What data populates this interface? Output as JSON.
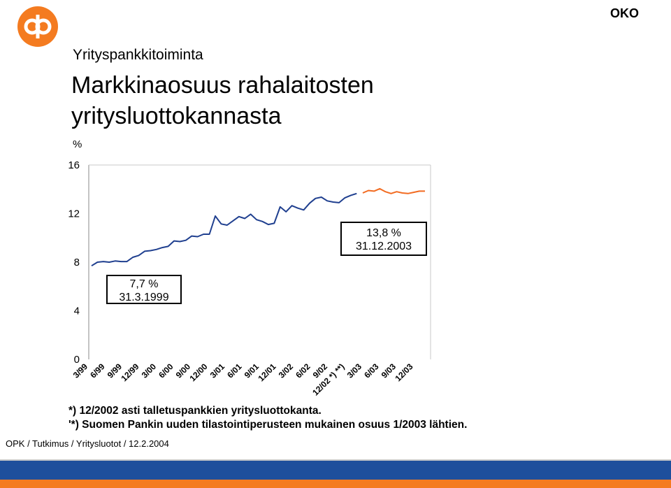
{
  "brand": "OKO",
  "section": "Yrityspankkitoiminta",
  "title_lines": [
    "Markkinaosuus rahalaitosten",
    "yritysluottokannasta"
  ],
  "unit_label": "%",
  "callouts": [
    {
      "value": "7,7 %",
      "date": "31.3.1999"
    },
    {
      "value": "13,8 %",
      "date": "31.12.2003"
    }
  ],
  "notes": [
    "*) 12/2002 asti talletuspankkien yritysluottokanta.",
    "'*) Suomen Pankin uuden tilastointiperusteen mukainen osuus 1/2003 lähtien."
  ],
  "footer": "OPK / Tutkimus / Yritysluotot / 12.2.2004",
  "colors": {
    "old_series": "#1f3f8f",
    "new_series": "#f26b21",
    "logo": "#f47b20",
    "band_blue": "#1e4f9c",
    "band_orange": "#f47b20"
  },
  "chart_data": {
    "type": "line",
    "ylim": [
      0,
      16
    ],
    "yticks": [
      0,
      4,
      8,
      12,
      16
    ],
    "grid": false,
    "xtick_labels": [
      "3/99",
      "6/99",
      "9/99",
      "12/99",
      "3/00",
      "6/00",
      "9/00",
      "12/00",
      "3/01",
      "6/01",
      "9/01",
      "12/01",
      "3/02",
      "6/02",
      "9/02",
      "12/02 *) **)",
      "3/03",
      "6/03",
      "9/03",
      "12/03"
    ],
    "series": [
      {
        "color": "#1f3f8f",
        "values": [
          7.7,
          8.0,
          8.05,
          8.0,
          8.1,
          8.05,
          8.05,
          8.4,
          8.55,
          8.9,
          8.95,
          9.05,
          9.2,
          9.3,
          9.75,
          9.7,
          9.8,
          10.15,
          10.1,
          10.3,
          10.3,
          11.8,
          11.15,
          11.05,
          11.4,
          11.75,
          11.6,
          11.95,
          11.5,
          11.35,
          11.1,
          11.2,
          12.55,
          12.15,
          12.65,
          12.45,
          12.3,
          12.85,
          13.25,
          13.35,
          13.05,
          12.95,
          12.9,
          13.3,
          13.5,
          13.65
        ]
      },
      {
        "color": "#f26b21",
        "values": [
          13.7,
          13.9,
          13.85,
          14.05,
          13.8,
          13.65,
          13.8,
          13.7,
          13.65,
          13.75,
          13.85,
          13.85
        ]
      }
    ]
  }
}
